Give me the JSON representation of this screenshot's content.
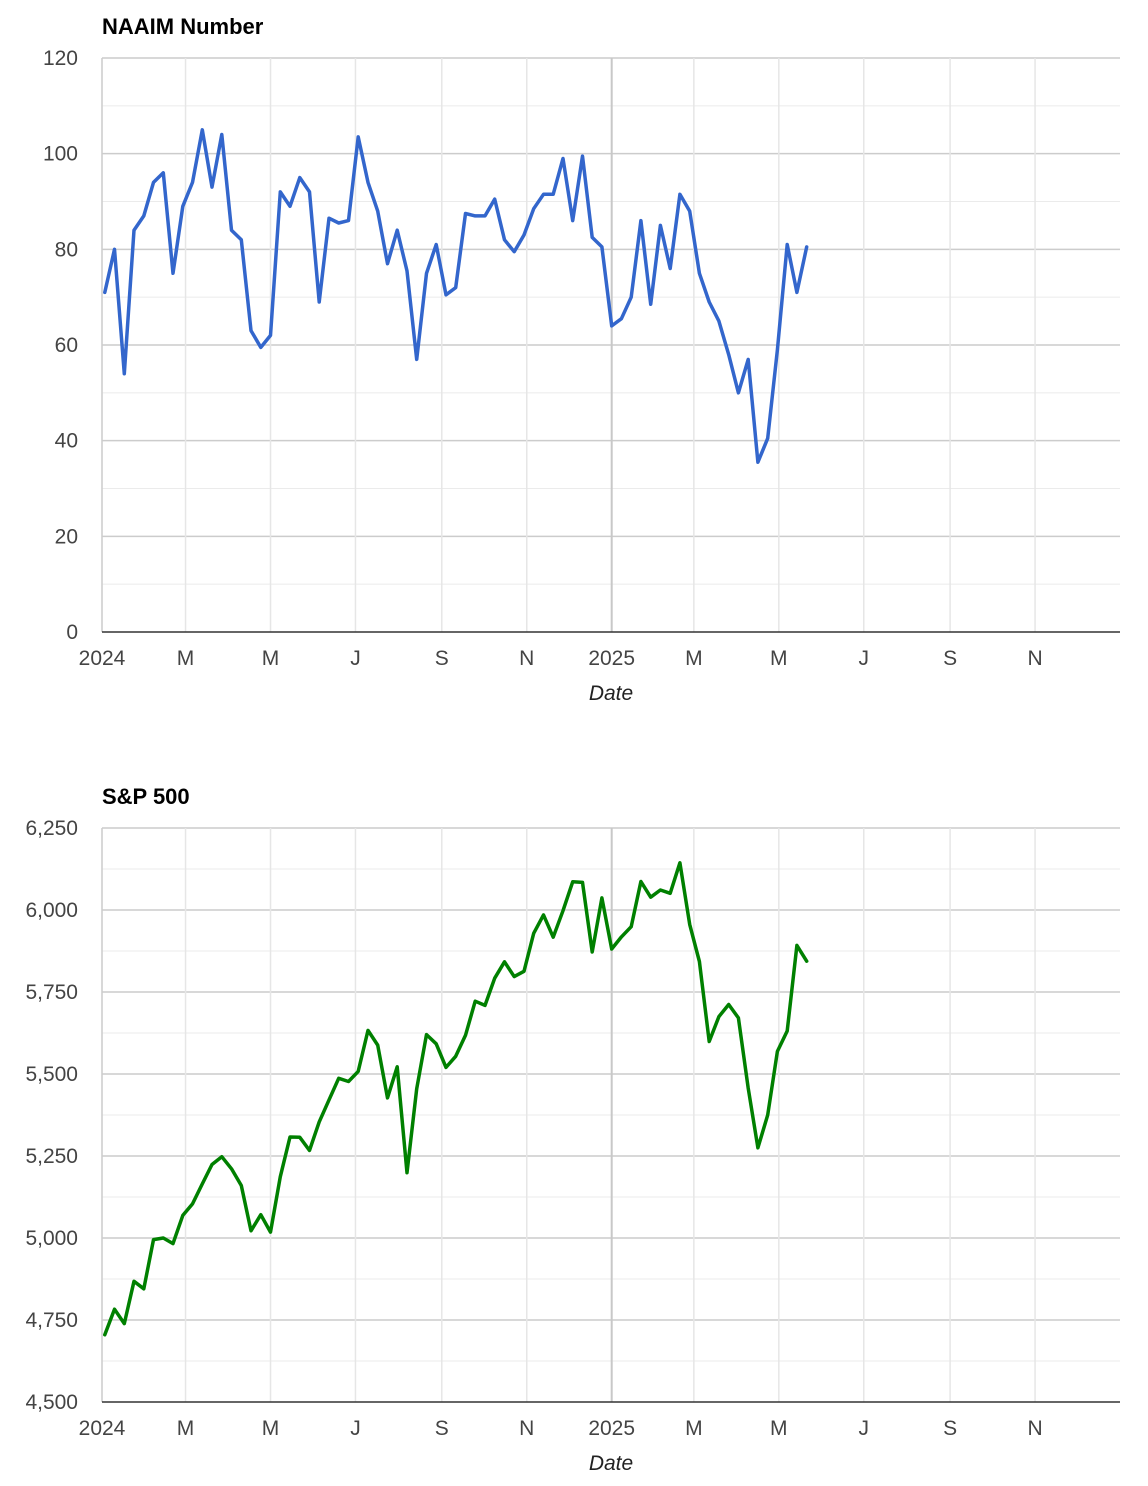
{
  "chart_data": [
    {
      "type": "line",
      "title": "NAAIM Number",
      "xlabel": "Date",
      "ylabel": "",
      "color": "#3366cc",
      "ylim": [
        0,
        120
      ],
      "yticks": [
        0,
        20,
        40,
        60,
        80,
        100,
        120
      ],
      "yticks_labels": [
        "0",
        "20",
        "40",
        "60",
        "80",
        "100",
        "120"
      ],
      "xlim": [
        "2024-01-01",
        "2025-12-31"
      ],
      "xticks": [
        {
          "date": "2024-01-01",
          "label": "2024",
          "major": true
        },
        {
          "date": "2024-03-01",
          "label": "M",
          "major": false
        },
        {
          "date": "2024-05-01",
          "label": "M",
          "major": false
        },
        {
          "date": "2024-07-01",
          "label": "J",
          "major": false
        },
        {
          "date": "2024-09-01",
          "label": "S",
          "major": false
        },
        {
          "date": "2024-11-01",
          "label": "N",
          "major": false
        },
        {
          "date": "2025-01-01",
          "label": "2025",
          "major": true
        },
        {
          "date": "2025-03-01",
          "label": "M",
          "major": false
        },
        {
          "date": "2025-05-01",
          "label": "M",
          "major": false
        },
        {
          "date": "2025-07-01",
          "label": "J",
          "major": false
        },
        {
          "date": "2025-09-01",
          "label": "S",
          "major": false
        },
        {
          "date": "2025-11-01",
          "label": "N",
          "major": false
        }
      ],
      "x": [
        "2024-01-03",
        "2024-01-10",
        "2024-01-17",
        "2024-01-24",
        "2024-01-31",
        "2024-02-07",
        "2024-02-14",
        "2024-02-21",
        "2024-02-28",
        "2024-03-06",
        "2024-03-13",
        "2024-03-20",
        "2024-03-27",
        "2024-04-03",
        "2024-04-10",
        "2024-04-17",
        "2024-04-24",
        "2024-05-01",
        "2024-05-08",
        "2024-05-15",
        "2024-05-22",
        "2024-05-29",
        "2024-06-05",
        "2024-06-12",
        "2024-06-19",
        "2024-06-26",
        "2024-07-03",
        "2024-07-10",
        "2024-07-17",
        "2024-07-24",
        "2024-07-31",
        "2024-08-07",
        "2024-08-14",
        "2024-08-21",
        "2024-08-28",
        "2024-09-04",
        "2024-09-11",
        "2024-09-18",
        "2024-09-25",
        "2024-10-02",
        "2024-10-09",
        "2024-10-16",
        "2024-10-23",
        "2024-10-30",
        "2024-11-06",
        "2024-11-13",
        "2024-11-20",
        "2024-11-27",
        "2024-12-04",
        "2024-12-11",
        "2024-12-18",
        "2024-12-25",
        "2025-01-01",
        "2025-01-08",
        "2025-01-15",
        "2025-01-22",
        "2025-01-29",
        "2025-02-05",
        "2025-02-12",
        "2025-02-19",
        "2025-02-26",
        "2025-03-05",
        "2025-03-12",
        "2025-03-19",
        "2025-03-26",
        "2025-04-02",
        "2025-04-09",
        "2025-04-16",
        "2025-04-23",
        "2025-04-30",
        "2025-05-07",
        "2025-05-14",
        "2025-05-21"
      ],
      "values": [
        71,
        80,
        54,
        84,
        87,
        94,
        96,
        75,
        89,
        94,
        105,
        93,
        104,
        84,
        82,
        63,
        59.5,
        62,
        92,
        89,
        95,
        92,
        69,
        86.5,
        85.5,
        86,
        103.5,
        94,
        88,
        77,
        84,
        75.5,
        57,
        75,
        81,
        70.5,
        72,
        87.5,
        87,
        87,
        90.5,
        82,
        79.5,
        83,
        88.5,
        91.5,
        91.5,
        99,
        86,
        99.5,
        82.5,
        80.5,
        64,
        65.5,
        70,
        86,
        68.5,
        85,
        76,
        91.5,
        88,
        75,
        69,
        65,
        58,
        50,
        57,
        35.5,
        40.5,
        59,
        81,
        71,
        80.5
      ]
    },
    {
      "type": "line",
      "title": "S&P 500",
      "xlabel": "Date",
      "ylabel": "",
      "color": "#008000",
      "ylim": [
        4500,
        6250
      ],
      "yticks": [
        4500,
        4750,
        5000,
        5250,
        5500,
        5750,
        6000,
        6250
      ],
      "yticks_labels": [
        "4,500",
        "4,750",
        "5,000",
        "5,250",
        "5,500",
        "5,750",
        "6,000",
        "6,250"
      ],
      "xlim": [
        "2024-01-01",
        "2025-12-31"
      ],
      "xticks": [
        {
          "date": "2024-01-01",
          "label": "2024",
          "major": true
        },
        {
          "date": "2024-03-01",
          "label": "M",
          "major": false
        },
        {
          "date": "2024-05-01",
          "label": "M",
          "major": false
        },
        {
          "date": "2024-07-01",
          "label": "J",
          "major": false
        },
        {
          "date": "2024-09-01",
          "label": "S",
          "major": false
        },
        {
          "date": "2024-11-01",
          "label": "N",
          "major": false
        },
        {
          "date": "2025-01-01",
          "label": "2025",
          "major": true
        },
        {
          "date": "2025-03-01",
          "label": "M",
          "major": false
        },
        {
          "date": "2025-05-01",
          "label": "M",
          "major": false
        },
        {
          "date": "2025-07-01",
          "label": "J",
          "major": false
        },
        {
          "date": "2025-09-01",
          "label": "S",
          "major": false
        },
        {
          "date": "2025-11-01",
          "label": "N",
          "major": false
        }
      ],
      "x": [
        "2024-01-03",
        "2024-01-10",
        "2024-01-17",
        "2024-01-24",
        "2024-01-31",
        "2024-02-07",
        "2024-02-14",
        "2024-02-21",
        "2024-02-28",
        "2024-03-06",
        "2024-03-13",
        "2024-03-20",
        "2024-03-27",
        "2024-04-03",
        "2024-04-10",
        "2024-04-17",
        "2024-04-24",
        "2024-05-01",
        "2024-05-08",
        "2024-05-15",
        "2024-05-22",
        "2024-05-29",
        "2024-06-05",
        "2024-06-12",
        "2024-06-19",
        "2024-06-26",
        "2024-07-03",
        "2024-07-10",
        "2024-07-17",
        "2024-07-24",
        "2024-07-31",
        "2024-08-07",
        "2024-08-14",
        "2024-08-21",
        "2024-08-28",
        "2024-09-04",
        "2024-09-11",
        "2024-09-18",
        "2024-09-25",
        "2024-10-02",
        "2024-10-09",
        "2024-10-16",
        "2024-10-23",
        "2024-10-30",
        "2024-11-06",
        "2024-11-13",
        "2024-11-20",
        "2024-11-27",
        "2024-12-04",
        "2024-12-11",
        "2024-12-18",
        "2024-12-25",
        "2025-01-01",
        "2025-01-08",
        "2025-01-15",
        "2025-01-22",
        "2025-01-29",
        "2025-02-05",
        "2025-02-12",
        "2025-02-19",
        "2025-02-26",
        "2025-03-05",
        "2025-03-12",
        "2025-03-19",
        "2025-03-26",
        "2025-04-02",
        "2025-04-09",
        "2025-04-16",
        "2025-04-23",
        "2025-04-30",
        "2025-05-07",
        "2025-05-14",
        "2025-05-21"
      ],
      "values": [
        4705,
        4783,
        4739,
        4868,
        4845,
        4995,
        5000,
        4983,
        5069,
        5104,
        5165,
        5224,
        5248,
        5211,
        5160,
        5022,
        5071,
        5018,
        5187,
        5308,
        5307,
        5267,
        5354,
        5421,
        5487,
        5477,
        5508,
        5633,
        5588,
        5427,
        5522,
        5199,
        5455,
        5620,
        5592,
        5520,
        5554,
        5618,
        5722,
        5709,
        5792,
        5842,
        5797,
        5813,
        5929,
        5985,
        5917,
        5998,
        6086,
        6084,
        5872,
        6037,
        5881,
        5918,
        5949,
        6087,
        6039,
        6061,
        6051,
        6144,
        5956,
        5843,
        5599,
        5675,
        5712,
        5671,
        5457,
        5275,
        5375,
        5569,
        5631,
        5892,
        5844
      ]
    }
  ]
}
